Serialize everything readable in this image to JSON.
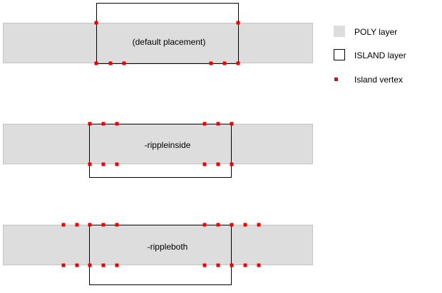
{
  "colors": {
    "poly_fill": "#dddddd",
    "poly_stroke": "#c4c4c4",
    "island_stroke": "#000000",
    "vertex": "#ee0000"
  },
  "legend": {
    "poly_label": "POLY layer",
    "island_label": "ISLAND layer",
    "vertex_label": "Island vertex"
  },
  "examples": [
    {
      "label": "(default placement)"
    },
    {
      "label": "-rippleinside"
    },
    {
      "label": "-rippleboth"
    }
  ]
}
